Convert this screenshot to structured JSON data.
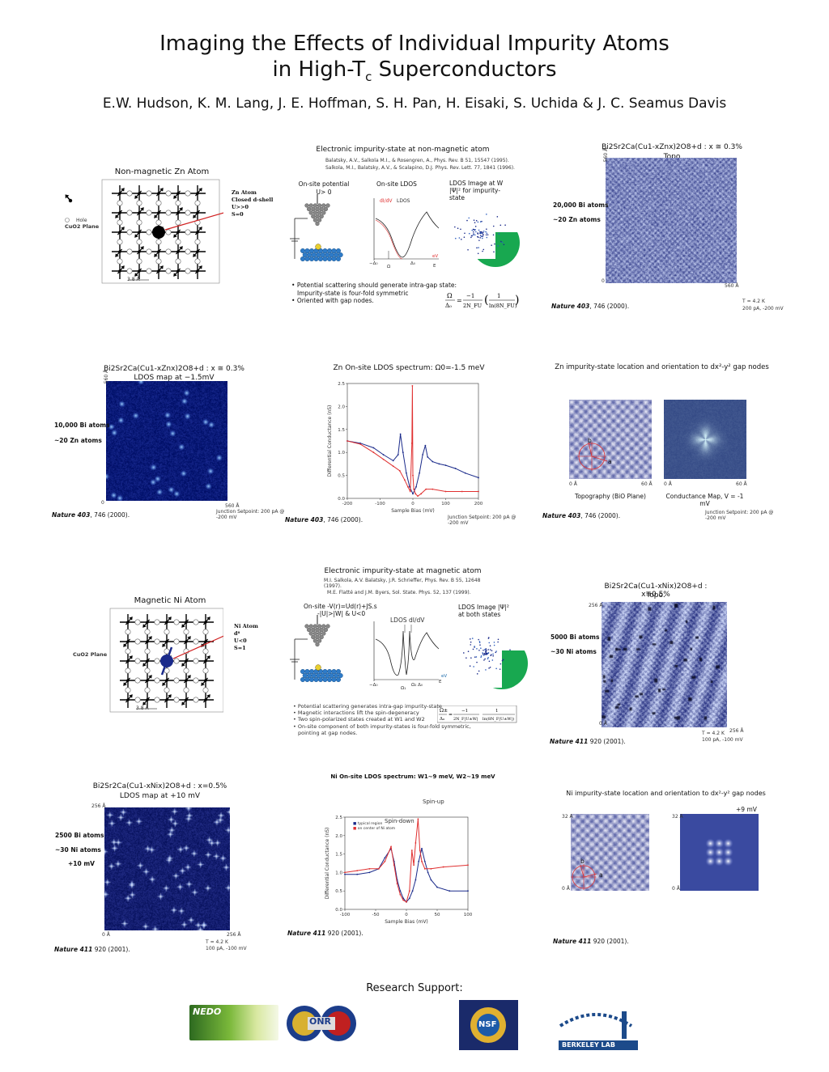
{
  "title_line1": "Imaging the Effects of Individual Impurity Atoms",
  "title_line2_pre": "in High-T",
  "title_line2_sub": "c",
  "title_line2_post": " Superconductors",
  "authors": "E.W. Hudson, K. M. Lang, J. E. Hoffman, S. H. Pan, H. Eisaki, S. Uchida & J. C. Seamus Davis",
  "zn_row1": {
    "lattice_title": "Non-magnetic Zn Atom",
    "hole_label": "Hole",
    "cuo2_label": "CuO2 Plane",
    "scale_label": "3.8 Å",
    "zn_atom": [
      "Zn Atom",
      "Closed d-shell",
      "U>>0",
      "S=0"
    ],
    "theory_title": "Electronic impurity-state at non-magnetic atom",
    "ref1": "Balatsky,  A.V., Salkola M.I., &  Rosengren, A.,  Phys. Rev. B 51, 15547 (1995).",
    "ref2": "Salkola, M.I., Balatsky, A.V., & Scalapino, D.J.  Phys. Rev. Lett. 77, 1841 (1996).",
    "onsite_potential": "On-site potential",
    "u_label": "U> 0",
    "onsite_ldos": "On-site LDOS",
    "didv": "dI/dV",
    "ldos": "LDOS",
    "ldos_image": "LDOS Image  at W",
    "psi_sq": "|Ψ|² for impurity-",
    "state": "state",
    "omega": "Ω",
    "neg_delta": "−Δ",
    "pos_delta": "Δ",
    "e_label": "E",
    "bullets": [
      "Potential scattering should generate intra-gap state:",
      "Impurity-state is four-fold symmetric",
      "Oriented with gap nodes."
    ],
    "formula_lhs": "Ω / Δ0",
    "formula_rhs": "= −1 / (2N_F U) · 1 / ln(8N_F U)",
    "topo_title": "Bi2Sr2Ca(Cu1-xZnx)2O8+d : x ≅ 0.3%",
    "topo_sub": "Topo",
    "bi_atoms": "20,000 Bi atoms",
    "zn_atoms": "~20 Zn atoms",
    "axis_560": "560 Å",
    "axis_0": "0",
    "t_label": "T = 4.2 K",
    "setpoint": "200 pA, -200 mV",
    "cite": "Nature 403, 746 (2000)."
  },
  "zn_row2": {
    "map_title": "Bi2Sr2Ca(Cu1-xZnx)2O8+d : x ≅ 0.3%",
    "map_sub": "LDOS map at −1.5mV",
    "bi_atoms": "10,000 Bi atoms",
    "zn_atoms": "~20 Zn atoms",
    "axis_560": "560 Å",
    "axis_0": "0",
    "junction": "Junction Setpoint: 200 pA @ -200 mV",
    "cite": "Nature 403, 746 (2000).",
    "spec_title": "Zn On-site LDOS spectrum: Ω0=-1.5 meV",
    "loc_title": "Zn impurity-state location and orientation to dx²-y² gap nodes",
    "topo_caption": "Topography (BiO Plane)",
    "cond_caption": "Conductance Map, V = -1 mV",
    "a_label": "a",
    "b_label": "b",
    "axis_60": "60 Å",
    "axis_0a": "0 Å"
  },
  "zn_chart": {
    "type": "line",
    "title": "Zn On-site LDOS spectrum: Ω0=-1.5 meV",
    "xlabel": "Sample Bias (mV)",
    "ylabel": "Differential Conductance (nS)",
    "xlim": [
      -200,
      200
    ],
    "ylim": [
      0,
      2.5
    ],
    "xticks": [
      -200,
      -100,
      0,
      100,
      200
    ],
    "yticks": [
      0.0,
      0.5,
      1.0,
      1.5,
      2.0,
      2.5
    ],
    "series": [
      {
        "color": "#1a2a8a",
        "x": [
          -200,
          -160,
          -120,
          -90,
          -60,
          -45,
          -38,
          -30,
          -20,
          -10,
          0,
          10,
          20,
          30,
          38,
          45,
          60,
          80,
          100,
          130,
          160,
          200
        ],
        "y": [
          1.25,
          1.2,
          1.1,
          0.95,
          0.82,
          0.95,
          1.4,
          1.0,
          0.55,
          0.25,
          0.1,
          0.25,
          0.55,
          0.95,
          1.15,
          0.9,
          0.8,
          0.75,
          0.72,
          0.65,
          0.55,
          0.45
        ]
      },
      {
        "color": "#e03030",
        "x": [
          -200,
          -160,
          -120,
          -90,
          -60,
          -40,
          -25,
          -15,
          -8,
          -3,
          -1.5,
          0,
          3,
          8,
          15,
          25,
          40,
          60,
          100,
          150,
          200
        ],
        "y": [
          1.25,
          1.18,
          1.0,
          0.85,
          0.7,
          0.6,
          0.4,
          0.25,
          0.15,
          1.2,
          2.45,
          0.5,
          0.2,
          0.1,
          0.05,
          0.1,
          0.2,
          0.2,
          0.15,
          0.15,
          0.15
        ]
      }
    ]
  },
  "ni_row1": {
    "lattice_title": "Magnetic Ni Atom",
    "cuo2_label": "CuO2 Plane",
    "scale_label": "3.8 Å",
    "ni_atom": [
      "Ni Atom",
      "d⁸",
      "U<0",
      "S=1"
    ],
    "theory_title": "Electronic impurity-state at magnetic atom",
    "ref1": "M.I. Salkola, A.V. Balatsky, J.R. Schrieffer, Phys. Rev. B 55, 12648 (1997).",
    "ref2": "M.E. Flatté and J.M. Byers, Sol. State. Phys. 52, 137 (1999).",
    "onsite": "On-site -V(r)=Ud(r)+JS.s",
    "onsite2": "-|U|>|W| & U<0",
    "ldos_didv": "LDOS dI/dV",
    "ldos_image": "LDOS Image |Ψ|²",
    "both_states": "at    both states",
    "bullets": [
      "Potential scattering generates intra-gap impurity-state",
      "Magnetic interactions lift the spin-degeneracy",
      "Two spin-polarized states created at  W1 and W2",
      "On-site component of both impurity-states is four-fold symmetric,",
      "pointing at gap nodes."
    ],
    "topo_title": "Bi2Sr2Ca(Cu1-xNix)2O8+d : x=0.5%",
    "topo_sub": "Topo.",
    "bi_atoms": "5000 Bi atoms",
    "ni_atoms": "~30 Ni atoms",
    "axis_256": "256 Å",
    "axis_0": "0 Å",
    "t_label": "T = 4.2 K",
    "setpoint": "100 pA, -100 mV",
    "cite": "Nature 411 920 (2001)."
  },
  "ni_row2": {
    "map_title": "Bi2Sr2Ca(Cu1-xNix)2O8+d : x=0.5%",
    "map_sub": "LDOS map at +10 mV",
    "bi_atoms": "2500 Bi atoms",
    "ni_atoms": "~30 Ni atoms",
    "plus10": "+10 mV",
    "axis_256": "256 Å",
    "axis_0": "0 Å",
    "t_label": "T = 4.2 K",
    "setpoint": "100 pA, -100 mV",
    "cite": "Nature 411 920 (2001).",
    "spec_title": "Ni On-site LDOS spectrum: W1~9 meV, W2~19 meV",
    "spin_up": "Spin-up",
    "spin_down": "Spin-down",
    "legend1": "typical region",
    "legend2": "on center of Ni atom",
    "loc_title": "Ni impurity-state location and orientation to dx²-y² gap nodes",
    "plus9": "+9 mV",
    "a_label": "a",
    "b_label": "b",
    "axis_32": "32 Å",
    "axis_0a": "0 Å"
  },
  "ni_chart": {
    "type": "line",
    "title": "Ni On-site LDOS spectrum: W1~9 meV, W2~19 meV",
    "xlabel": "Sample Bias (mV)",
    "ylabel": "Differential Conductance (nS)",
    "xlim": [
      -100,
      100
    ],
    "ylim": [
      0,
      2.5
    ],
    "xticks": [
      -100,
      -50,
      0,
      50,
      100
    ],
    "yticks": [
      0.0,
      0.5,
      1.0,
      1.5,
      2.0,
      2.5
    ],
    "series": [
      {
        "color": "#1a2a8a",
        "x": [
          -100,
          -80,
          -60,
          -45,
          -35,
          -25,
          -20,
          -15,
          -10,
          -5,
          0,
          5,
          10,
          15,
          20,
          25,
          30,
          35,
          40,
          50,
          70,
          100
        ],
        "y": [
          0.95,
          0.95,
          1.0,
          1.1,
          1.4,
          1.65,
          1.3,
          0.8,
          0.5,
          0.3,
          0.2,
          0.3,
          0.5,
          0.8,
          1.3,
          1.65,
          1.3,
          1.0,
          0.8,
          0.6,
          0.5,
          0.5
        ]
      },
      {
        "color": "#e03030",
        "x": [
          -100,
          -80,
          -60,
          -45,
          -35,
          -25,
          -20,
          -15,
          -10,
          -5,
          0,
          5,
          9,
          12,
          15,
          19,
          22,
          25,
          30,
          40,
          60,
          100
        ],
        "y": [
          1.0,
          1.05,
          1.1,
          1.1,
          1.3,
          1.7,
          1.2,
          0.7,
          0.4,
          0.25,
          0.2,
          0.5,
          1.6,
          1.2,
          1.8,
          2.45,
          1.6,
          1.3,
          1.1,
          1.1,
          1.15,
          1.2
        ]
      }
    ]
  },
  "support": {
    "title": "Research Support:",
    "nedo": "NEDO",
    "onr": "ONR",
    "nsf": "NSF",
    "berkeley": "BERKELEY LAB"
  },
  "colors": {
    "stm_blue": "#3c4a9a",
    "stm_dark": "#0d1460",
    "red": "#e03030",
    "navy": "#1a2a8a",
    "green": "#18a850"
  }
}
